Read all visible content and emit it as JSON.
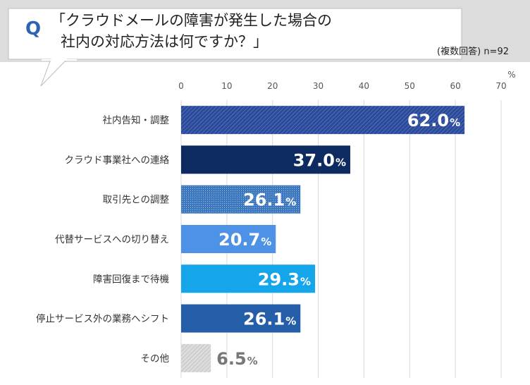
{
  "header": {
    "q_letter": "Q",
    "title_line1": "「クラウドメールの障害が発生した場合の",
    "title_line2": "社内の対応方法は何ですか？」",
    "note": "(複数回答) n=92"
  },
  "chart_data": {
    "type": "bar",
    "orientation": "horizontal",
    "title": "「クラウドメールの障害が発生した場合の社内の対応方法は何ですか？」",
    "unit": "%",
    "xlim": [
      0,
      70
    ],
    "ticks": [
      0,
      10,
      20,
      30,
      40,
      50,
      60,
      70
    ],
    "grid": true,
    "categories": [
      "社内告知・調整",
      "クラウド事業社への連絡",
      "取引先との調整",
      "代替サービスへの切り替え",
      "障害回復まで待機",
      "停止サービス外の業務へシフト",
      "その他"
    ],
    "values": [
      62.0,
      37.0,
      26.1,
      20.7,
      29.3,
      26.1,
      6.5
    ],
    "value_labels": [
      "62.0",
      "37.0",
      "26.1",
      "20.7",
      "29.3",
      "26.1",
      "6.5"
    ],
    "colors": [
      "#2b4a9a",
      "#0d2b60",
      "#3d78bf",
      "#4d92e6",
      "#14a5ea",
      "#245ea8",
      "#c8c8c8"
    ],
    "label_colors": [
      "#ffffff",
      "#ffffff",
      "#ffffff",
      "#ffffff",
      "#ffffff",
      "#ffffff",
      "#777777"
    ]
  }
}
